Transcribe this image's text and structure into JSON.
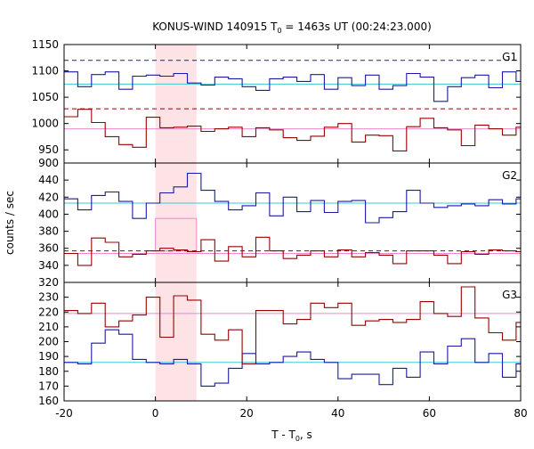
{
  "title": "KONUS-WIND 140915 T",
  "title_sub": "0",
  "title_rest": " = 1463s UT (00:24:23.000)",
  "xlabel": "T - T",
  "xlabel_sub": "0",
  "xlabel_rest": ", s",
  "ylabel": "counts / sec",
  "colors": {
    "blue": "#1a1aa6",
    "red": "#990000",
    "cyan": "#3cc8d2",
    "pink": "#ee88cc",
    "shade": "#fde2e6",
    "frame": "#000000"
  },
  "chart_data": {
    "type": "line",
    "x_ticks": [
      -20,
      0,
      20,
      40,
      60,
      80
    ],
    "x_tick_labels": [
      "-20",
      "0",
      "20",
      "40",
      "60",
      "80"
    ],
    "xlim": [
      -20,
      80
    ],
    "shade_interval": [
      0,
      9
    ],
    "panels": [
      {
        "name": "G1",
        "ylim": [
          925,
          1150
        ],
        "y_ticks": [
          950,
          1000,
          1050,
          1100,
          1150
        ],
        "y_tick_labels": [
          "950",
          "1000",
          "1050",
          "1100",
          "1150"
        ],
        "series": [
          {
            "color": "blue",
            "x": [
              -20,
              -17,
              -14,
              -11,
              -8,
              -5,
              -2,
              1,
              4,
              7,
              10,
              13,
              16,
              19,
              22,
              25,
              28,
              31,
              34,
              37,
              40,
              43,
              46,
              49,
              52,
              55,
              58,
              61,
              64,
              67,
              70,
              73,
              76,
              79
            ],
            "y": [
              1098,
              1070,
              1093,
              1098,
              1065,
              1090,
              1092,
              1090,
              1095,
              1077,
              1073,
              1088,
              1085,
              1070,
              1063,
              1085,
              1088,
              1080,
              1093,
              1065,
              1087,
              1072,
              1092,
              1065,
              1072,
              1095,
              1088,
              1042,
              1070,
              1087,
              1092,
              1068,
              1098,
              1080
            ]
          },
          {
            "color": "red",
            "x": [
              -20,
              -17,
              -14,
              -11,
              -8,
              -5,
              -2,
              1,
              4,
              7,
              10,
              13,
              16,
              19,
              22,
              25,
              28,
              31,
              34,
              37,
              40,
              43,
              46,
              49,
              52,
              55,
              58,
              61,
              64,
              67,
              70,
              73,
              76,
              79
            ],
            "y": [
              1013,
              1027,
              1002,
              975,
              960,
              955,
              1012,
              992,
              993,
              995,
              985,
              990,
              993,
              975,
              992,
              988,
              973,
              968,
              976,
              993,
              1000,
              965,
              978,
              977,
              948,
              994,
              1010,
              992,
              988,
              958,
              997,
              990,
              978,
              993
            ]
          }
        ],
        "reference_lines": [
          {
            "color": "cyan",
            "style": "solid",
            "y": 1075
          },
          {
            "color": "blue",
            "style": "dashed",
            "y": 1120
          },
          {
            "color": "pink",
            "style": "solid",
            "y": 990
          },
          {
            "color": "red",
            "style": "dashed",
            "y": 1028
          }
        ]
      },
      {
        "name": "G2",
        "ylim": [
          320,
          460
        ],
        "y_ticks": [
          340,
          360,
          380,
          400,
          420,
          440
        ],
        "y_tick_labels": [
          "340",
          "360",
          "380",
          "400",
          "420",
          "440"
        ],
        "series": [
          {
            "color": "blue",
            "x": [
              -20,
              -17,
              -14,
              -11,
              -8,
              -5,
              -2,
              1,
              4,
              7,
              10,
              13,
              16,
              19,
              22,
              25,
              28,
              31,
              34,
              37,
              40,
              43,
              46,
              49,
              52,
              55,
              58,
              61,
              64,
              67,
              70,
              73,
              76,
              79
            ],
            "y": [
              418,
              405,
              422,
              426,
              415,
              395,
              413,
              425,
              432,
              448,
              428,
              415,
              405,
              410,
              425,
              398,
              420,
              403,
              416,
              402,
              415,
              416,
              390,
              396,
              403,
              428,
              413,
              408,
              410,
              412,
              410,
              417,
              412,
              418
            ]
          },
          {
            "color": "red",
            "x": [
              -20,
              -17,
              -14,
              -11,
              -8,
              -5,
              -2,
              1,
              4,
              7,
              10,
              13,
              16,
              19,
              22,
              25,
              28,
              31,
              34,
              37,
              40,
              43,
              46,
              49,
              52,
              55,
              58,
              61,
              64,
              67,
              70,
              73,
              76,
              79
            ],
            "y": [
              354,
              340,
              372,
              367,
              350,
              353,
              357,
              360,
              358,
              356,
              370,
              345,
              362,
              350,
              373,
              357,
              348,
              352,
              357,
              350,
              358,
              350,
              355,
              352,
              342,
              357,
              357,
              352,
              342,
              356,
              353,
              358,
              357,
              356
            ]
          }
        ],
        "reference_lines": [
          {
            "color": "cyan",
            "style": "solid",
            "y": 413
          },
          {
            "color": "red",
            "style": "dashed",
            "y": 357
          },
          {
            "color": "pink",
            "style": "solid",
            "y": 354
          }
        ],
        "highlight_box": {
          "color": "pink",
          "x": [
            0,
            9
          ],
          "y": [
            357,
            395
          ]
        }
      },
      {
        "name": "G3",
        "ylim": [
          160,
          240
        ],
        "y_ticks": [
          160,
          170,
          180,
          190,
          200,
          210,
          220,
          230,
          240
        ],
        "y_tick_labels": [
          "160",
          "170",
          "180",
          "190",
          "200",
          "210",
          "220",
          "230",
          ""
        ],
        "series": [
          {
            "color": "blue",
            "x": [
              -20,
              -17,
              -14,
              -11,
              -8,
              -5,
              -2,
              1,
              4,
              7,
              10,
              13,
              16,
              19,
              22,
              25,
              28,
              31,
              34,
              37,
              40,
              43,
              46,
              49,
              52,
              55,
              58,
              61,
              64,
              67,
              70,
              73,
              76,
              79
            ],
            "y": [
              186,
              185,
              199,
              208,
              205,
              188,
              186,
              185,
              188,
              185,
              170,
              172,
              182,
              192,
              185,
              186,
              190,
              193,
              188,
              186,
              175,
              178,
              178,
              171,
              182,
              176,
              193,
              185,
              197,
              202,
              186,
              192,
              176,
              185
            ]
          },
          {
            "color": "red",
            "x": [
              -20,
              -17,
              -14,
              -11,
              -8,
              -5,
              -2,
              1,
              4,
              7,
              10,
              13,
              16,
              19,
              22,
              25,
              28,
              31,
              34,
              37,
              40,
              43,
              46,
              49,
              52,
              55,
              58,
              61,
              64,
              67,
              70,
              73,
              76,
              79
            ],
            "y": [
              221,
              219,
              226,
              210,
              214,
              218,
              230,
              203,
              231,
              228,
              205,
              201,
              208,
              185,
              221,
              221,
              212,
              215,
              226,
              223,
              226,
              211,
              214,
              215,
              213,
              215,
              227,
              219,
              217,
              237,
              216,
              206,
              201,
              213
            ]
          }
        ],
        "reference_lines": [
          {
            "color": "cyan",
            "style": "solid",
            "y": 186
          },
          {
            "color": "pink",
            "style": "solid",
            "y": 219
          }
        ]
      }
    ]
  }
}
